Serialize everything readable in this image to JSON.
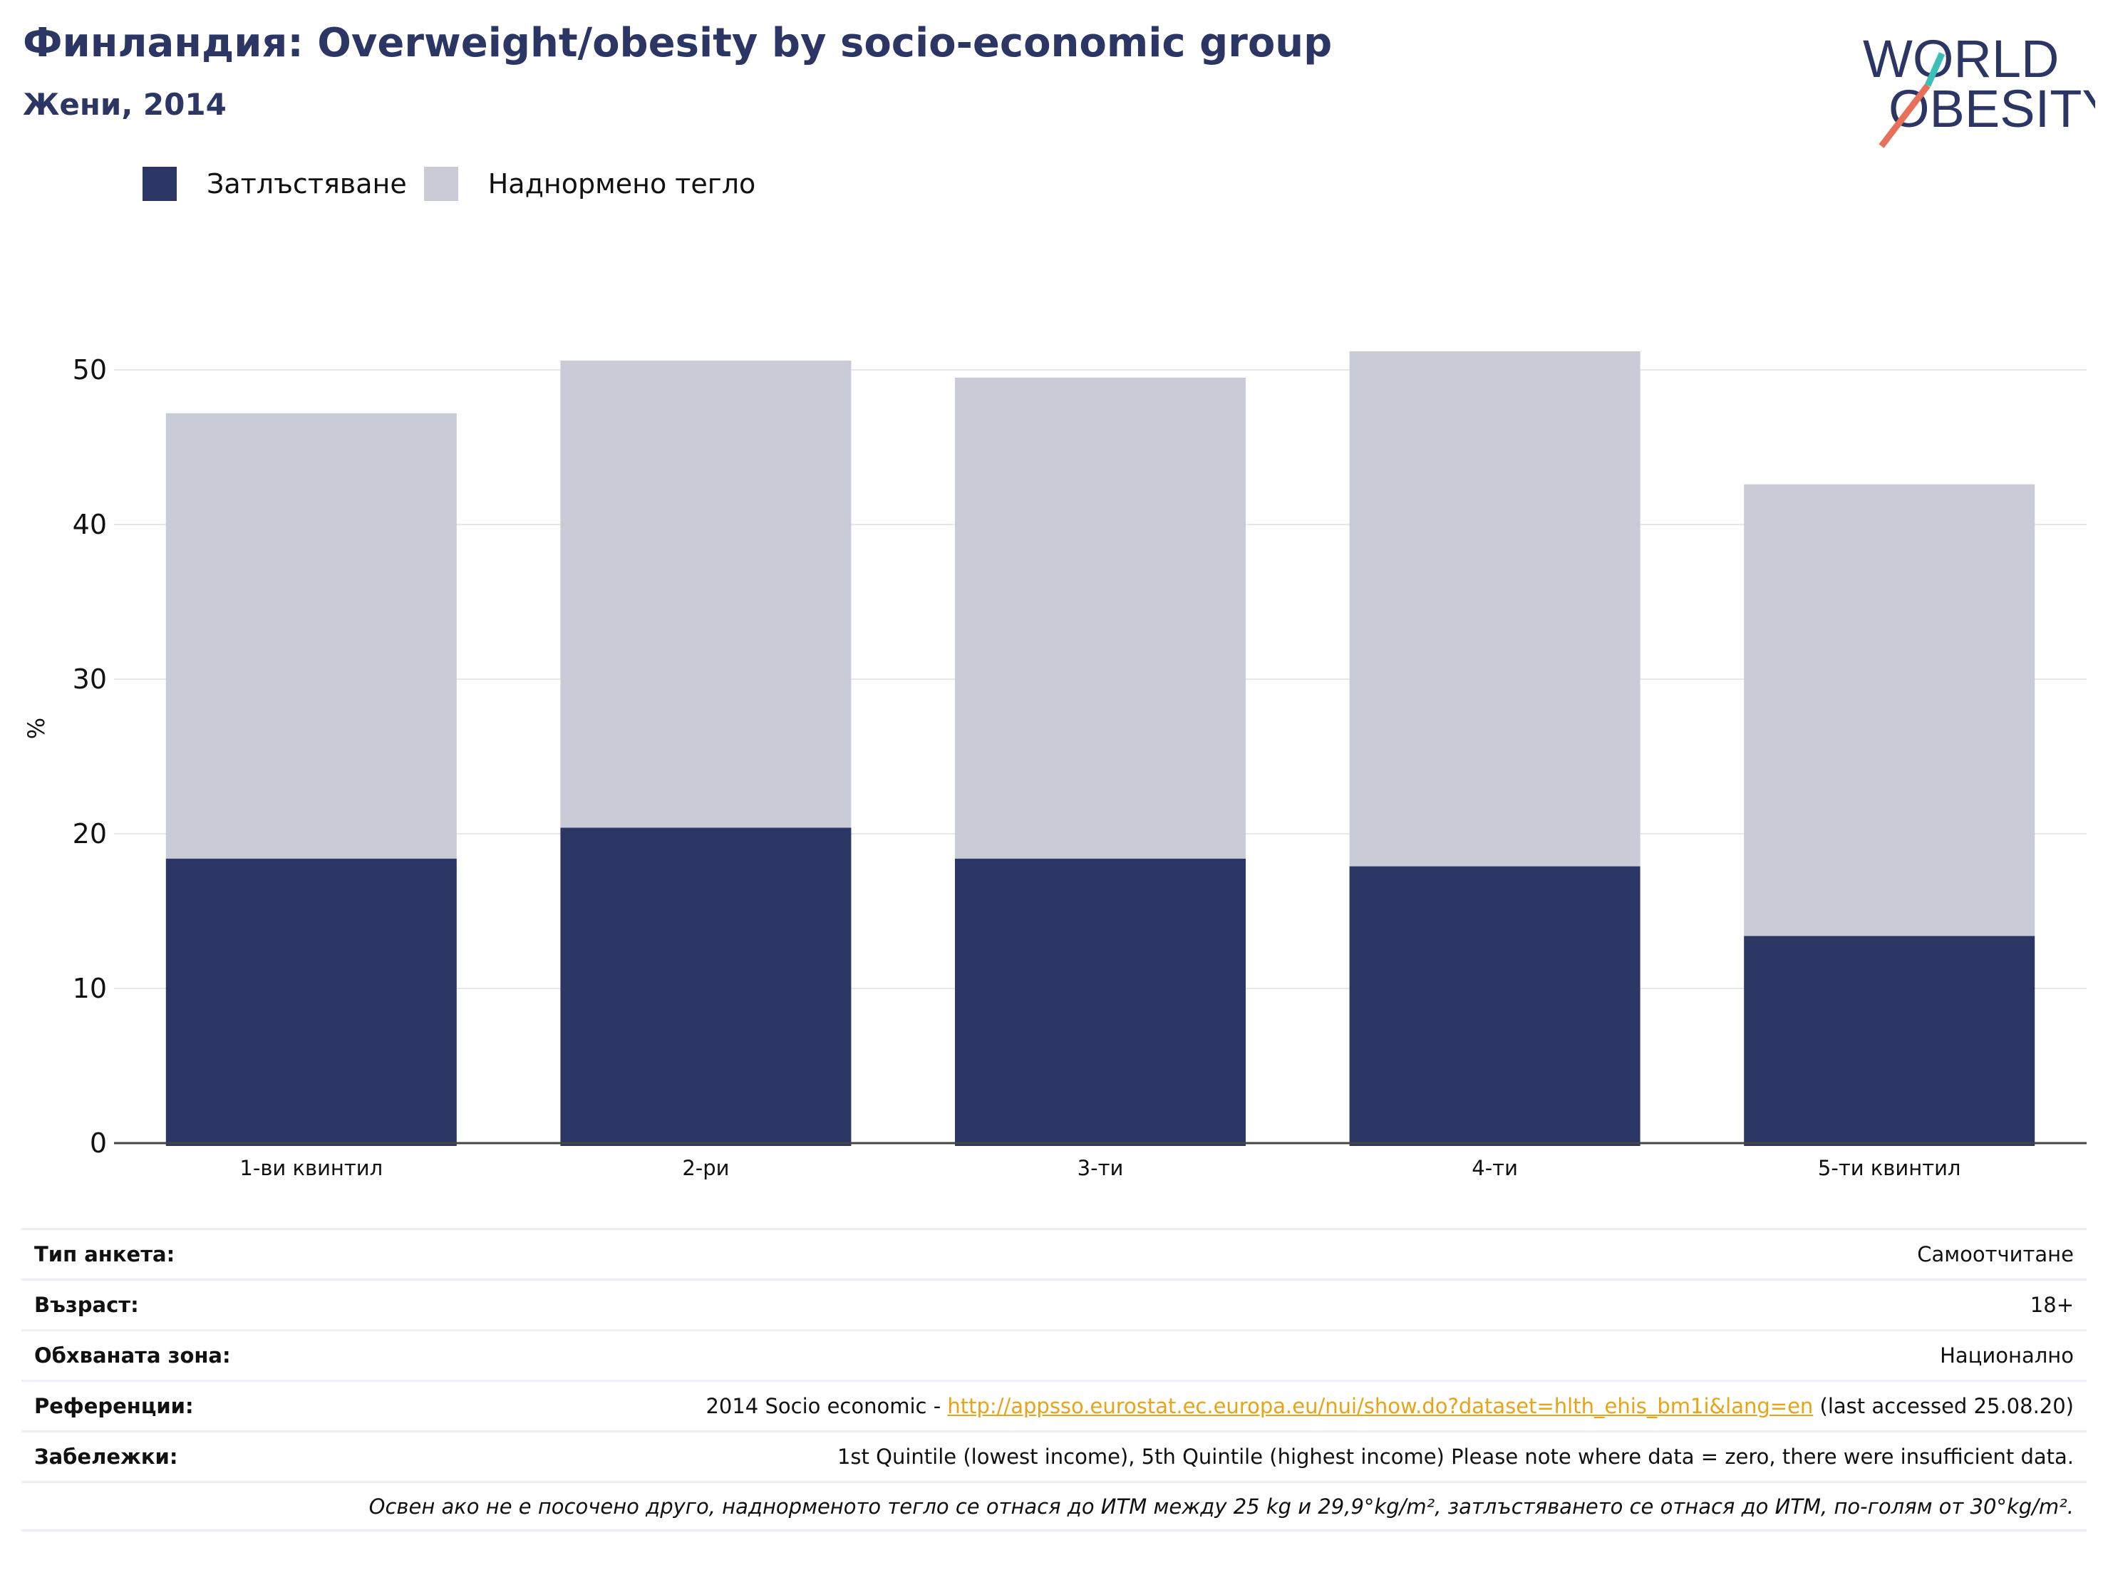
{
  "header": {
    "title": "Финландия: Overweight/obesity by socio-economic group",
    "subtitle": "Жени, 2014"
  },
  "logo": {
    "line1": "WORLD",
    "line2": "OBESITY",
    "colors": {
      "text": "#2b3664",
      "teal": "#3bbfb8",
      "coral": "#e8705a"
    }
  },
  "legend": {
    "items": [
      {
        "label": "Затлъстяване",
        "color": "#2b3664"
      },
      {
        "label": "Наднормено тегло",
        "color": "#c9cbd6"
      }
    ]
  },
  "chart_data": {
    "type": "bar",
    "stacked": true,
    "categories": [
      "1-ви квинтил",
      "2-ри",
      "3-ти",
      "4-ти",
      "5-ти квинтил"
    ],
    "series": [
      {
        "name": "Затлъстяване",
        "color": "#2b3664",
        "values": [
          18.4,
          20.4,
          18.4,
          17.9,
          13.4
        ]
      },
      {
        "name": "Наднормено тегло",
        "color": "#c9cbd6",
        "values": [
          28.8,
          30.2,
          31.1,
          33.3,
          29.2
        ]
      }
    ],
    "ylabel": "%",
    "ylim": [
      0,
      55
    ],
    "yticks": [
      0,
      10,
      20,
      30,
      40,
      50
    ],
    "grid": true,
    "legend_position": "top-left"
  },
  "info": {
    "survey_type": {
      "label": "Тип анкета:",
      "value": "Самоотчитане"
    },
    "age": {
      "label": "Възраст:",
      "value": "18+"
    },
    "area": {
      "label": "Обхваната зона:",
      "value": "Национално"
    },
    "references": {
      "label": "Референции:",
      "prefix": "2014 Socio economic - ",
      "link": "http://appsso.eurostat.ec.europa.eu/nui/show.do?dataset=hlth_ehis_bm1i&lang=en",
      "suffix": " (last accessed 25.08.20)"
    },
    "notes": {
      "label": "Забележки:",
      "value": "1st Quintile (lowest income), 5th Quintile (highest income) Please note where data = zero, there were insufficient data."
    },
    "footnote": "Освен ако не е посочено друго, наднорменото тегло се отнася до ИТМ между 25 kg и 29,9°kg/m², затлъстяването се отнася до ИТМ, по-голям от 30°kg/m²."
  }
}
